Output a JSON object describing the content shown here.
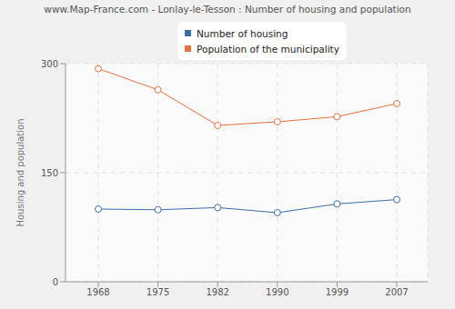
{
  "chart_data": {
    "type": "line",
    "title": "www.Map-France.com - Lonlay-le-Tesson : Number of housing and population",
    "y_label": "Housing and population",
    "categories": [
      "1968",
      "1975",
      "1982",
      "1990",
      "1999",
      "2007"
    ],
    "series": [
      {
        "name": "Number of housing",
        "color": "#3b6ea5",
        "values": [
          100,
          99,
          102,
          95,
          107,
          113
        ]
      },
      {
        "name": "Population of the municipality",
        "color": "#e0703f",
        "values": [
          293,
          264,
          215,
          220,
          227,
          245
        ]
      }
    ],
    "ylim": [
      0,
      300
    ],
    "yticks": [
      0,
      150,
      300
    ],
    "grid": true,
    "legend": "top",
    "marker": "circle"
  }
}
